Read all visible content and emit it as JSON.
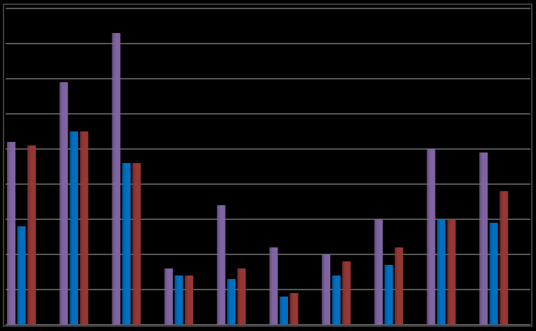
{
  "chart_data": {
    "type": "bar",
    "categories": [
      null,
      null,
      null,
      null,
      null,
      null,
      null,
      null,
      null,
      null
    ],
    "series": [
      {
        "color": "#8064a2",
        "values": [
          5.2,
          6.9,
          8.3,
          1.6,
          3.4,
          2.2,
          2.0,
          3.0,
          5.0,
          4.9
        ]
      },
      {
        "color": "#0070c0",
        "values": [
          2.8,
          5.5,
          4.6,
          1.4,
          1.3,
          0.8,
          1.4,
          1.7,
          3.0,
          2.9
        ]
      },
      {
        "color": "#953735",
        "values": [
          5.1,
          5.5,
          4.6,
          1.4,
          1.6,
          0.9,
          1.8,
          2.2,
          3.0,
          3.8
        ]
      }
    ],
    "ylim": [
      0,
      9
    ],
    "yticks": [
      0,
      1,
      2,
      3,
      4,
      5,
      6,
      7,
      8,
      9
    ],
    "grid": true
  }
}
